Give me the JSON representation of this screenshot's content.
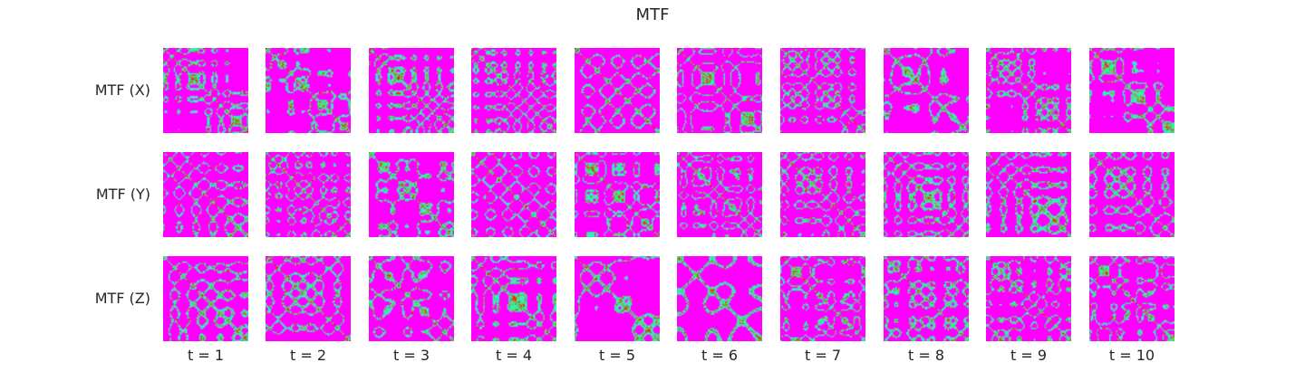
{
  "chart_data": {
    "type": "heatmap",
    "title": "MTF",
    "row_labels": [
      "MTF (X)",
      "MTF (Y)",
      "MTF (Z)"
    ],
    "column_labels": [
      "t = 1",
      "t = 2",
      "t = 3",
      "t = 4",
      "t = 5",
      "t = 6",
      "t = 7",
      "t = 8",
      "t = 9",
      "t = 10"
    ],
    "colormap": "rainbow",
    "colormap_min_color": "#7f00ff",
    "colormap_max_color": "#ff0000",
    "grid": false,
    "axes_visible": false
  }
}
